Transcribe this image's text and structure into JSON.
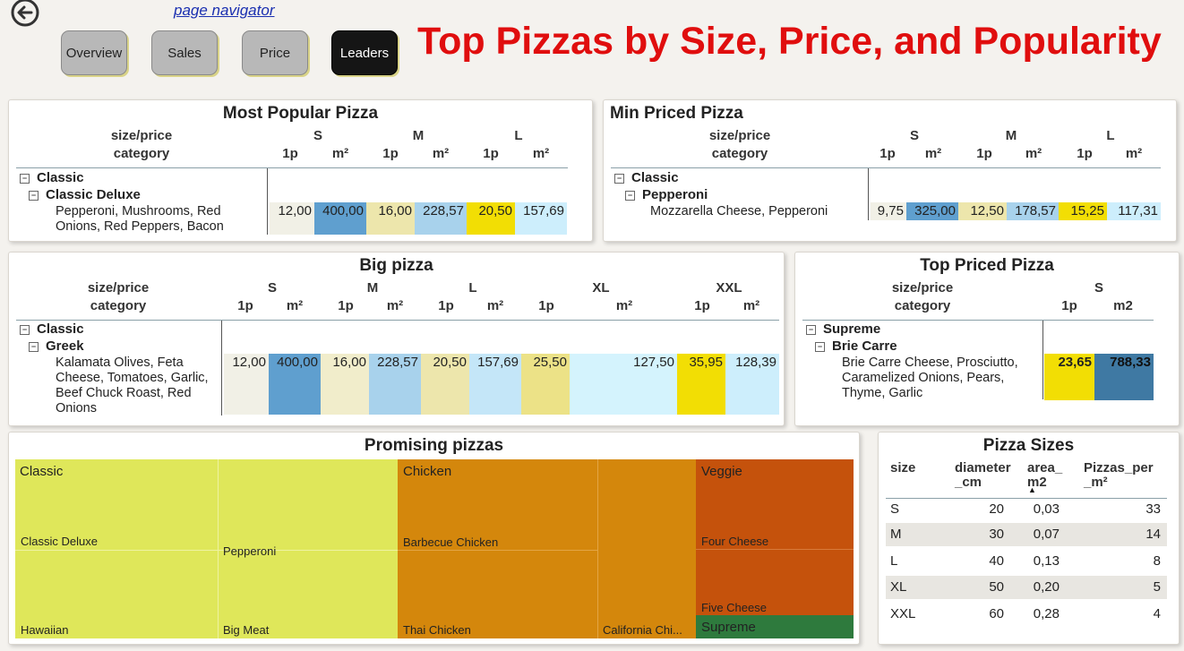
{
  "header": {
    "nav_link": "page navigator",
    "buttons": [
      "Overview",
      "Sales",
      "Price",
      "Leaders"
    ],
    "active_button": "Leaders",
    "title": "Top Pizzas by Size, Price, and Popularity"
  },
  "colors": {
    "title": "#e00e0e",
    "s_1p": "#f1f0e6",
    "s_m2": "#5f9fcf",
    "m_1p": "#ede6ac",
    "m_m2": "#a8d2ec",
    "l_1p": "#f2de04",
    "l_m2": "#cdeefc",
    "treemap_classic": "#dfe75a",
    "treemap_chicken": "#d4870c",
    "treemap_veggie": "#c5520c",
    "treemap_supreme": "#2e7a3d"
  },
  "col_header": {
    "line1": "size/price",
    "line2": "category",
    "one": "1p",
    "m2": "m²",
    "m2_plain": "m2"
  },
  "most_popular": {
    "title": "Most Popular Pizza",
    "sizes": [
      "S",
      "M",
      "L"
    ],
    "category": "Classic",
    "pizza": "Classic Deluxe",
    "ingredients": "Pepperoni, Mushrooms, Red Onions, Red Peppers, Bacon",
    "values": [
      "12,00",
      "400,00",
      "16,00",
      "228,57",
      "20,50",
      "157,69"
    ]
  },
  "min_priced": {
    "title": "Min Priced Pizza",
    "sizes": [
      "S",
      "M",
      "L"
    ],
    "category": "Classic",
    "pizza": "Pepperoni",
    "ingredients": "Mozzarella Cheese, Pepperoni",
    "values": [
      "9,75",
      "325,00",
      "12,50",
      "178,57",
      "15,25",
      "117,31"
    ]
  },
  "big_pizza": {
    "title": "Big pizza",
    "sizes": [
      "S",
      "M",
      "L",
      "XL",
      "XXL"
    ],
    "category": "Classic",
    "pizza": "Greek",
    "ingredients": "Kalamata Olives, Feta Cheese, Tomatoes, Garlic, Beef Chuck Roast, Red Onions",
    "values": [
      "12,00",
      "400,00",
      "16,00",
      "228,57",
      "20,50",
      "157,69",
      "25,50",
      "127,50",
      "35,95",
      "128,39"
    ]
  },
  "top_priced": {
    "title": "Top Priced Pizza",
    "sizes": [
      "S"
    ],
    "category": "Supreme",
    "pizza": "Brie Carre",
    "ingredients": "Brie Carre Cheese, Prosciutto, Caramelized Onions, Pears, Thyme, Garlic",
    "values": [
      "23,65",
      "788,33"
    ]
  },
  "promising": {
    "title": "Promising pizzas",
    "categories": [
      "Classic",
      "Chicken",
      "Veggie"
    ],
    "tiles": [
      "Classic Deluxe",
      "Pepperoni",
      "Hawaiian",
      "Big Meat",
      "Barbecue Chicken",
      "Thai Chicken",
      "California Chi...",
      "Four Cheese",
      "Five Cheese",
      "Supreme"
    ]
  },
  "pizza_sizes": {
    "title": "Pizza Sizes",
    "columns": [
      "size",
      "diameter _cm",
      "area_ m2",
      "Pizzas_per _m²"
    ],
    "sort_indicator": "▲",
    "rows": [
      [
        "S",
        "20",
        "0,03",
        "33"
      ],
      [
        "M",
        "30",
        "0,07",
        "14"
      ],
      [
        "L",
        "40",
        "0,13",
        "8"
      ],
      [
        "XL",
        "50",
        "0,20",
        "5"
      ],
      [
        "XXL",
        "60",
        "0,28",
        "4"
      ]
    ]
  }
}
